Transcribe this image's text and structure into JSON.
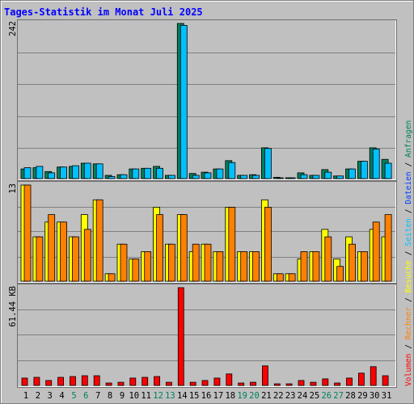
{
  "colors": {
    "background": "#c0c0c0",
    "grid": "#808080",
    "title": "#0000ff",
    "weekend_label": "#00805c",
    "weekday_label": "#000000",
    "separator": "#000000"
  },
  "chart_data": {
    "type": "bar",
    "title": "Tages-Statistik im Monat Juli 2025",
    "x": [
      "1",
      "2",
      "3",
      "4",
      "5",
      "6",
      "7",
      "8",
      "9",
      "10",
      "11",
      "12",
      "13",
      "14",
      "15",
      "16",
      "17",
      "18",
      "19",
      "20",
      "21",
      "22",
      "23",
      "24",
      "25",
      "26",
      "27",
      "28",
      "29",
      "30",
      "31"
    ],
    "weekend_indices": [
      4,
      5,
      11,
      12,
      18,
      19,
      25,
      26
    ],
    "legend_separator": " / ",
    "legend": [
      {
        "name": "Volumen",
        "color": "#ff0000"
      },
      {
        "name": "Rechner",
        "color": "#ff8000"
      },
      {
        "name": "Besuche",
        "color": "#ffff00"
      },
      {
        "name": "Seiten",
        "color": "#00c0ff"
      },
      {
        "name": "Dateien",
        "color": "#0040ff"
      },
      {
        "name": "Anfragen",
        "color": "#00805c"
      }
    ],
    "panels": [
      {
        "max_label": "242",
        "ylim": [
          0,
          242
        ],
        "series": [
          {
            "legend_index": 5,
            "color": "#00805c",
            "values": [
              15,
              17,
              11,
              18,
              19,
              24,
              23,
              5,
              6,
              15,
              16,
              19,
              5,
              242,
              8,
              10,
              15,
              28,
              5,
              6,
              48,
              2,
              1,
              9,
              5,
              14,
              4,
              15,
              27,
              48,
              30
            ]
          },
          {
            "legend_index": 3,
            "color": "#00c0ff",
            "values": [
              17,
              19,
              9,
              18,
              20,
              24,
              23,
              3,
              6,
              15,
              16,
              16,
              5,
              239,
              5,
              9,
              15,
              25,
              5,
              5,
              47,
              1,
              1,
              6,
              5,
              10,
              4,
              15,
              27,
              46,
              24
            ]
          }
        ]
      },
      {
        "max_label": "13",
        "ylim": [
          0,
          13
        ],
        "series": [
          {
            "legend_index": 2,
            "color": "#ffff00",
            "values": [
              13,
              6,
              8,
              8,
              6,
              9,
              11,
              1,
              5,
              3,
              4,
              10,
              5,
              9,
              4,
              5,
              4,
              10,
              4,
              4,
              11,
              1,
              1,
              3,
              4,
              7,
              3,
              6,
              4,
              7,
              6
            ]
          },
          {
            "legend_index": 1,
            "color": "#ff8000",
            "values": [
              13,
              6,
              9,
              8,
              6,
              7,
              11,
              1,
              5,
              3,
              4,
              9,
              5,
              9,
              5,
              5,
              4,
              10,
              4,
              4,
              10,
              1,
              1,
              4,
              4,
              6,
              2,
              5,
              4,
              8,
              9
            ]
          }
        ]
      },
      {
        "max_label": "61.44 KB",
        "ylim": [
          0,
          61.44
        ],
        "series": [
          {
            "legend_index": 0,
            "color": "#ff0000",
            "values": [
              4.6,
              5.1,
              3.1,
              5.1,
              5.6,
              6.1,
              6.1,
              1.5,
              2.0,
              4.6,
              5.1,
              5.6,
              2.0,
              61.44,
              2.0,
              3.1,
              4.6,
              7.2,
              1.5,
              2.0,
              12.3,
              1.0,
              1.0,
              3.1,
              2.0,
              4.1,
              1.5,
              4.6,
              7.7,
              11.8,
              6.1
            ]
          }
        ]
      }
    ]
  }
}
